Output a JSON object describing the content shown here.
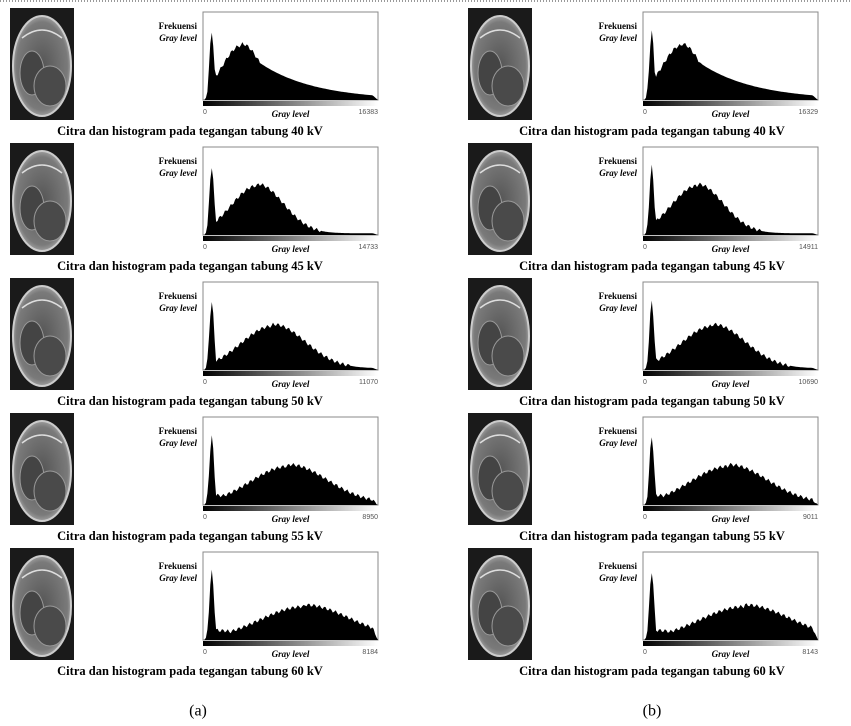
{
  "panels": [
    {
      "label": "(a)",
      "rows": [
        {
          "y_label_top": "Frekuensi",
          "y_label_bottom": "Gray level",
          "x_min": "0",
          "x_label": "Gray level",
          "x_max": "16383",
          "caption": "Citra dan histogram pada tegangan tabung 40 kV"
        },
        {
          "y_label_top": "Frekuensi",
          "y_label_bottom": "Gray level",
          "x_min": "0",
          "x_label": "Gray level",
          "x_max": "14733",
          "caption": "Citra dan histogram pada tegangan tabung 45 kV"
        },
        {
          "y_label_top": "Frekuensi",
          "y_label_bottom": "Gray level",
          "x_min": "0",
          "x_label": "Gray level",
          "x_max": "11070",
          "caption": "Citra dan histogram pada tegangan tabung 50 kV"
        },
        {
          "y_label_top": "Frekuensi",
          "y_label_bottom": "Gray level",
          "x_min": "0",
          "x_label": "Gray level",
          "x_max": "8950",
          "caption": "Citra dan histogram pada tegangan tabung 55 kV"
        },
        {
          "y_label_top": "Frekuensi",
          "y_label_bottom": "Gray level",
          "x_min": "0",
          "x_label": "Gray level",
          "x_max": "8184",
          "caption": "Citra dan histogram pada tegangan tabung 60 kV"
        }
      ]
    },
    {
      "label": "(b)",
      "rows": [
        {
          "y_label_top": "Frekuensi",
          "y_label_bottom": "Gray level",
          "x_min": "0",
          "x_label": "Gray level",
          "x_max": "16329",
          "caption": "Citra dan histogram pada tegangan tabung 40 kV"
        },
        {
          "y_label_top": "Frekuensi",
          "y_label_bottom": "Gray level",
          "x_min": "0",
          "x_label": "Gray level",
          "x_max": "14911",
          "caption": "Citra dan histogram pada tegangan tabung 45 kV"
        },
        {
          "y_label_top": "Frekuensi",
          "y_label_bottom": "Gray level",
          "x_min": "0",
          "x_label": "Gray level",
          "x_max": "10690",
          "caption": "Citra dan histogram pada tegangan tabung 50 kV"
        },
        {
          "y_label_top": "Frekuensi",
          "y_label_bottom": "Gray level",
          "x_min": "0",
          "x_label": "Gray level",
          "x_max": "9011",
          "caption": "Citra dan histogram pada tegangan tabung 55 kV"
        },
        {
          "y_label_top": "Frekuensi",
          "y_label_bottom": "Gray level",
          "x_min": "0",
          "x_label": "Gray level",
          "x_max": "8143",
          "caption": "Citra dan histogram pada tegangan tabung 60 kV"
        }
      ]
    }
  ]
}
